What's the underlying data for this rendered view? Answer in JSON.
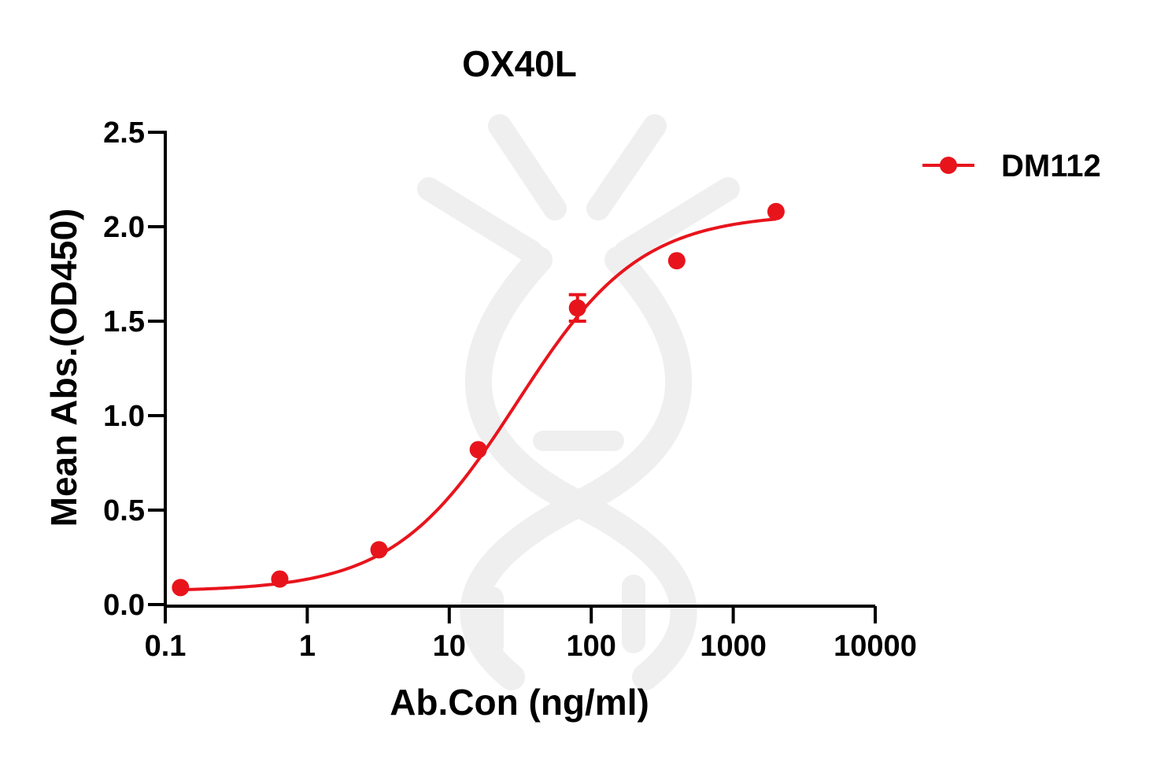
{
  "chart_data": {
    "type": "scatter",
    "title": "OX40L",
    "xlabel": "Ab.Con (ng/ml)",
    "ylabel": "Mean Abs.(OD450)",
    "x_scale": "log",
    "xlim": [
      0.1,
      10000
    ],
    "ylim": [
      0,
      2.5
    ],
    "x_ticks": [
      {
        "value": 0.1,
        "label": "0.1"
      },
      {
        "value": 1,
        "label": "1"
      },
      {
        "value": 10,
        "label": "10"
      },
      {
        "value": 100,
        "label": "100"
      },
      {
        "value": 1000,
        "label": "1000"
      },
      {
        "value": 10000,
        "label": "10000"
      }
    ],
    "y_ticks": [
      {
        "value": 0,
        "label": "0.0"
      },
      {
        "value": 0.5,
        "label": "0.5"
      },
      {
        "value": 1,
        "label": "1.0"
      },
      {
        "value": 1.5,
        "label": "1.5"
      },
      {
        "value": 2,
        "label": "2.0"
      },
      {
        "value": 2.5,
        "label": "2.5"
      }
    ],
    "grid": false,
    "legend_position": "top-right",
    "series": [
      {
        "name": "DM112",
        "color": "#e8141c",
        "points": [
          {
            "x": 0.128,
            "y": 0.09,
            "err": 0.0
          },
          {
            "x": 0.64,
            "y": 0.135,
            "err": 0.0
          },
          {
            "x": 3.2,
            "y": 0.29,
            "err": 0.0
          },
          {
            "x": 16,
            "y": 0.82,
            "err": 0.0
          },
          {
            "x": 80,
            "y": 1.57,
            "err": 0.07
          },
          {
            "x": 400,
            "y": 1.82,
            "err": 0.0
          },
          {
            "x": 2000,
            "y": 2.08,
            "err": 0.0
          }
        ],
        "fit_curve": {
          "bottom": 0.07,
          "top": 2.07,
          "ec50": 30,
          "hill": 1.0
        }
      }
    ]
  }
}
